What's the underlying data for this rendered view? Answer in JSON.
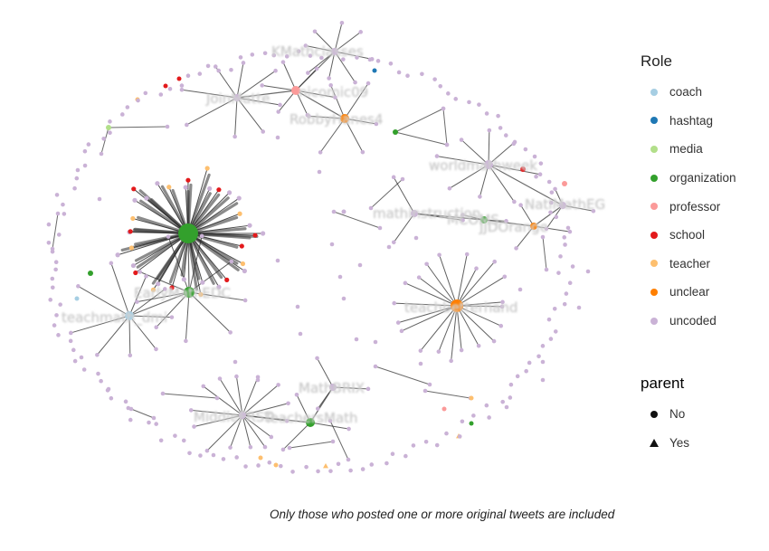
{
  "legend_role": {
    "title": "Role",
    "items": [
      {
        "label": "coach",
        "color": "#a6cee3"
      },
      {
        "label": "hashtag",
        "color": "#1f78b4"
      },
      {
        "label": "media",
        "color": "#b2df8a"
      },
      {
        "label": "organization",
        "color": "#33a02c"
      },
      {
        "label": "professor",
        "color": "#fb9a99"
      },
      {
        "label": "school",
        "color": "#e31a1c"
      },
      {
        "label": "teacher",
        "color": "#fdbf6f"
      },
      {
        "label": "unclear",
        "color": "#ff7f00"
      },
      {
        "label": "uncoded",
        "color": "#cab2d6"
      }
    ]
  },
  "legend_parent": {
    "title": "parent",
    "items": [
      {
        "label": "No",
        "shape": "circle"
      },
      {
        "label": "Yes",
        "shape": "triangle"
      }
    ]
  },
  "caption": "Only those who posted one or more original tweets are included",
  "graph": {
    "clusters": [
      {
        "id": "c1",
        "label": "",
        "role": "organization",
        "size": "large",
        "spokes": 34
      },
      {
        "id": "c2",
        "label": "EarlyMathEDC",
        "role": "organization",
        "size": "medium",
        "spokes": 9
      },
      {
        "id": "c3",
        "label": "teachmath_dmi",
        "role": "coach",
        "size": "small",
        "spokes": 9
      },
      {
        "id": "c4",
        "label": "teachbetterhand",
        "role": "unclear",
        "size": "medium",
        "spokes": 20
      },
      {
        "id": "c5",
        "label": "KMathclasses",
        "role": "uncoded",
        "size": "small",
        "spokes": 8
      },
      {
        "id": "c6",
        "label": "JoinMatte",
        "role": "uncoded",
        "size": "small",
        "spokes": 8
      },
      {
        "id": "c7",
        "label": "nicomic09",
        "role": "professor",
        "size": "small",
        "spokes": 6
      },
      {
        "id": "c8",
        "label": "RobbyHanes4",
        "role": "unclear",
        "size": "small",
        "spokes": 6
      },
      {
        "id": "c9",
        "label": "worldmathweek",
        "role": "uncoded",
        "size": "small",
        "spokes": 8
      },
      {
        "id": "c10",
        "label": "mathinstruction",
        "role": "uncoded",
        "size": "small",
        "spokes": 3
      },
      {
        "id": "c11",
        "label": "MCOMS",
        "role": "organization",
        "size": "small",
        "spokes": 2
      },
      {
        "id": "c12",
        "label": "JJDOrange",
        "role": "unclear",
        "size": "small",
        "spokes": 3
      },
      {
        "id": "c13",
        "label": "NatlMathEG",
        "role": "uncoded",
        "size": "small",
        "spokes": 3
      },
      {
        "id": "c14",
        "label": "MathBRIX",
        "role": "uncoded",
        "size": "small",
        "spokes": 3
      },
      {
        "id": "c15",
        "label": "MiddleFRSD",
        "role": "uncoded",
        "size": "small",
        "spokes": 14
      },
      {
        "id": "c16",
        "label": "TeachersMath",
        "role": "organization",
        "size": "small",
        "spokes": 3
      }
    ]
  }
}
